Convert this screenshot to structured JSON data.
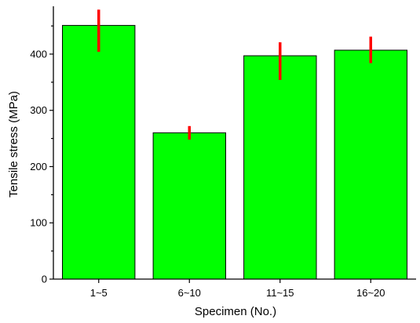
{
  "chart_data": {
    "type": "bar",
    "categories": [
      "1~5",
      "6~10",
      "11~15",
      "16~20"
    ],
    "series": [
      {
        "values": [
          451,
          260,
          397,
          407
        ],
        "error_low": [
          404,
          248,
          354,
          384
        ],
        "error_high": [
          479,
          272,
          421,
          431
        ]
      }
    ],
    "xlabel": "Specimen (No.)",
    "ylabel": "Tensile stress (MPa)",
    "ylim": [
      0,
      485
    ],
    "yticks": [
      0,
      100,
      200,
      300,
      400
    ],
    "yticks_labels": [
      "0",
      "100",
      "200",
      "300",
      "400"
    ],
    "grid": false,
    "legend": "none",
    "colors": {
      "bar": "#00ff00",
      "error_bar": "#ff0000",
      "axis": "#000000"
    }
  }
}
